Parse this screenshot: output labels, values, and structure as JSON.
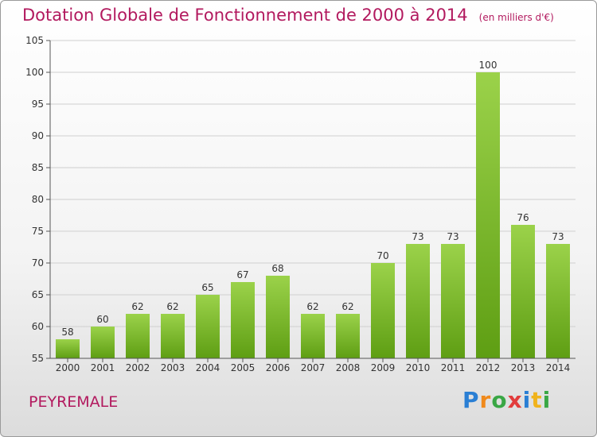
{
  "header": {
    "title": "Dotation Globale de Fonctionnement de 2000 à 2014",
    "unit": "(en milliers d'€)"
  },
  "commune": "PEYREMALE",
  "logo": {
    "text": "Proxiti",
    "letters": [
      "P",
      "r",
      "o",
      "x",
      "i",
      "t",
      "i"
    ]
  },
  "colors": {
    "bar_top": "#9bd24a",
    "bar_bottom": "#5e9e13",
    "title": "#b2195e"
  },
  "chart_data": {
    "type": "bar",
    "title": "Dotation Globale de Fonctionnement de 2000 à 2014",
    "subtitle": "(en milliers d'€)",
    "categories": [
      "2000",
      "2001",
      "2002",
      "2003",
      "2004",
      "2005",
      "2006",
      "2007",
      "2008",
      "2009",
      "2010",
      "2011",
      "2012",
      "2013",
      "2014"
    ],
    "values": [
      58,
      60,
      62,
      62,
      65,
      67,
      68,
      62,
      62,
      70,
      73,
      73,
      100,
      76,
      73
    ],
    "ylim": [
      55,
      105
    ],
    "yticks": [
      55,
      60,
      65,
      70,
      75,
      80,
      85,
      90,
      95,
      100,
      105
    ],
    "grid": true,
    "xlabel": "",
    "ylabel": ""
  }
}
